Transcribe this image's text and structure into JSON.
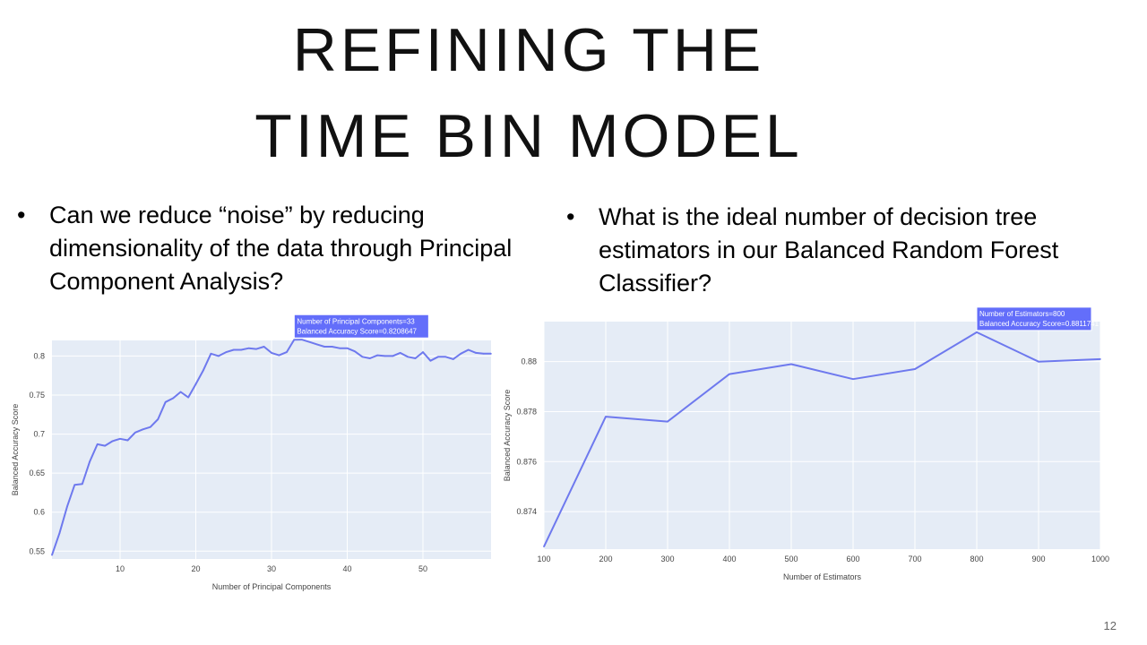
{
  "slide": {
    "title_line1": "REFINING THE",
    "title_line2": "TIME BIN MODEL",
    "bullet_left": "Can we reduce “noise” by reducing dimensionality of the data through Principal Component Analysis?",
    "bullet_right": "What is the ideal number of decision tree estimators in our Balanced Random Forest Classifier?",
    "bullet_symbol": "•",
    "page_number": "12"
  },
  "colors": {
    "plot_bg": "#e5ecf6",
    "line": "#6e79ee",
    "hover_bg": "#636efa",
    "grid": "#ffffff"
  },
  "chart_data": [
    {
      "type": "line",
      "xlabel": "Number of Principal Components",
      "ylabel": "Balanced Accuracy Score",
      "xlim": [
        1,
        59
      ],
      "ylim": [
        0.54,
        0.82
      ],
      "x_ticks": [
        10,
        20,
        30,
        40,
        50
      ],
      "y_ticks": [
        0.55,
        0.6,
        0.65,
        0.7,
        0.75,
        0.8
      ],
      "y_tick_labels": [
        "0.55",
        "0.6",
        "0.65",
        "0.7",
        "0.75",
        "0.8"
      ],
      "x": [
        1,
        2,
        3,
        4,
        5,
        6,
        7,
        8,
        9,
        10,
        11,
        12,
        13,
        14,
        15,
        16,
        17,
        18,
        19,
        20,
        21,
        22,
        23,
        24,
        25,
        26,
        27,
        28,
        29,
        30,
        31,
        32,
        33,
        34,
        35,
        36,
        37,
        38,
        39,
        40,
        41,
        42,
        43,
        44,
        45,
        46,
        47,
        48,
        49,
        50,
        51,
        52,
        53,
        54,
        55,
        56,
        57,
        58,
        59
      ],
      "y": [
        0.545,
        0.573,
        0.607,
        0.635,
        0.636,
        0.665,
        0.687,
        0.685,
        0.691,
        0.694,
        0.692,
        0.702,
        0.706,
        0.709,
        0.719,
        0.741,
        0.746,
        0.754,
        0.747,
        0.764,
        0.782,
        0.803,
        0.8,
        0.805,
        0.808,
        0.808,
        0.81,
        0.809,
        0.812,
        0.804,
        0.801,
        0.805,
        0.8208647,
        0.821,
        0.818,
        0.815,
        0.812,
        0.812,
        0.81,
        0.81,
        0.806,
        0.799,
        0.797,
        0.801,
        0.8,
        0.8,
        0.804,
        0.799,
        0.797,
        0.805,
        0.794,
        0.799,
        0.799,
        0.796,
        0.803,
        0.808,
        0.804,
        0.803,
        0.803
      ],
      "hover": {
        "x": 33,
        "line1": "Number of Principal Components=33",
        "line2": "Balanced Accuracy Score=0.8208647"
      }
    },
    {
      "type": "line",
      "xlabel": "Number of Estimators",
      "ylabel": "Balanced Accuracy Score",
      "xlim": [
        100,
        1000
      ],
      "ylim": [
        0.8725,
        0.8816
      ],
      "x_ticks": [
        100,
        200,
        300,
        400,
        500,
        600,
        700,
        800,
        900,
        1000
      ],
      "y_ticks": [
        0.874,
        0.876,
        0.878,
        0.88
      ],
      "y_tick_labels": [
        "0.874",
        "0.876",
        "0.878",
        "0.88"
      ],
      "x": [
        100,
        200,
        300,
        400,
        500,
        600,
        700,
        800,
        900,
        1000
      ],
      "y": [
        0.8726,
        0.8778,
        0.8776,
        0.8795,
        0.8799,
        0.8793,
        0.8797,
        0.8811741,
        0.88,
        0.8801
      ],
      "hover": {
        "x": 800,
        "line1": "Number of Estimators=800",
        "line2": "Balanced Accuracy Score=0.8811741"
      }
    }
  ]
}
